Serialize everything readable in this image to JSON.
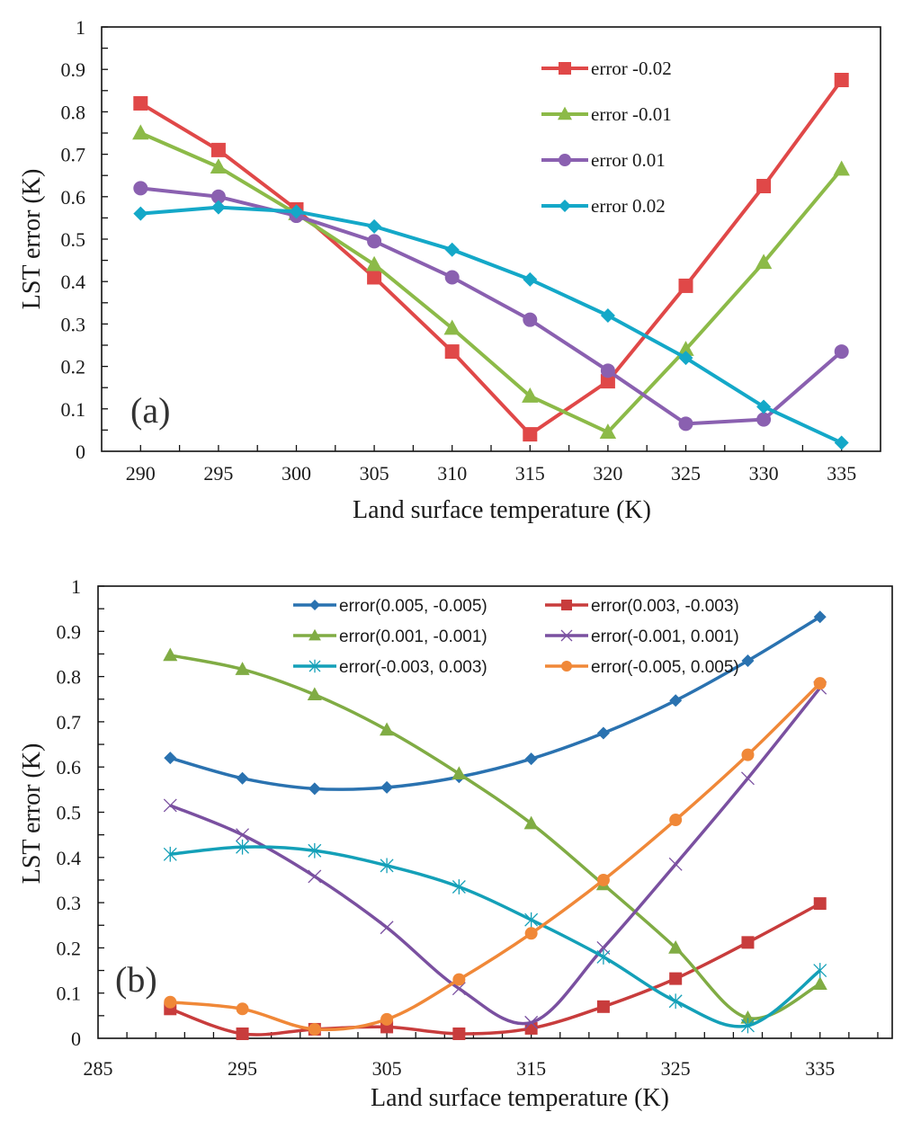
{
  "chart_data": [
    {
      "id": "a",
      "type": "line",
      "panel_label": "(a)",
      "title": "",
      "xlabel": "Land surface temperature (K)",
      "ylabel": "LST error (K)",
      "xlim": [
        287.5,
        337.5
      ],
      "ylim": [
        0,
        1
      ],
      "x_ticks": [
        290,
        295,
        300,
        305,
        310,
        315,
        320,
        325,
        330,
        335
      ],
      "x_tick_labels": [
        "290",
        "295",
        "300",
        "305",
        "310",
        "315",
        "320",
        "325",
        "330",
        "335"
      ],
      "y_ticks": [
        0,
        0.1,
        0.2,
        0.3,
        0.4,
        0.5,
        0.6,
        0.7,
        0.8,
        0.9,
        1
      ],
      "y_tick_labels": [
        "0",
        "0.1",
        "0.2",
        "0.3",
        "0.4",
        "0.5",
        "0.6",
        "0.7",
        "0.8",
        "0.9",
        "1"
      ],
      "grid": false,
      "smooth": false,
      "legend_position": "top-center",
      "x": [
        290,
        295,
        300,
        305,
        310,
        315,
        320,
        325,
        330,
        335
      ],
      "series": [
        {
          "name": "error -0.02",
          "color": "#e04848",
          "marker": "square",
          "values": [
            0.82,
            0.71,
            0.57,
            0.41,
            0.235,
            0.04,
            0.165,
            0.39,
            0.625,
            0.875
          ]
        },
        {
          "name": "error -0.01",
          "color": "#8cba48",
          "marker": "triangle",
          "values": [
            0.75,
            0.67,
            0.56,
            0.44,
            0.29,
            0.13,
            0.045,
            0.24,
            0.445,
            0.665
          ]
        },
        {
          "name": "error 0.01",
          "color": "#8a60b0",
          "marker": "circle",
          "values": [
            0.62,
            0.6,
            0.555,
            0.495,
            0.41,
            0.31,
            0.19,
            0.065,
            0.075,
            0.235
          ]
        },
        {
          "name": "error 0.02",
          "color": "#14a8c8",
          "marker": "diamond",
          "values": [
            0.56,
            0.575,
            0.565,
            0.53,
            0.475,
            0.405,
            0.32,
            0.22,
            0.105,
            0.02
          ]
        }
      ]
    },
    {
      "id": "b",
      "type": "line",
      "panel_label": "(b)",
      "title": "",
      "xlabel": "Land surface temperature (K)",
      "ylabel": "LST error (K)",
      "xlim": [
        285,
        340
      ],
      "ylim": [
        0,
        1
      ],
      "x_ticks": [
        285,
        295,
        305,
        315,
        325,
        335
      ],
      "x_tick_labels": [
        "285",
        "295",
        "305",
        "315",
        "325",
        "335"
      ],
      "x_minor_tick_step": 2,
      "y_ticks": [
        0,
        0.1,
        0.2,
        0.3,
        0.4,
        0.5,
        0.6,
        0.7,
        0.8,
        0.9,
        1
      ],
      "y_tick_labels": [
        "0",
        "0.1",
        "0.2",
        "0.3",
        "0.4",
        "0.5",
        "0.6",
        "0.7",
        "0.8",
        "0.9",
        "1"
      ],
      "grid": false,
      "smooth": true,
      "legend_position": "top-right",
      "x": [
        290,
        295,
        300,
        305,
        310,
        315,
        320,
        325,
        330,
        335
      ],
      "series": [
        {
          "name": "error(0.005, -0.005)",
          "color": "#2a72b0",
          "marker": "diamond",
          "values": [
            0.62,
            0.575,
            0.552,
            0.555,
            0.578,
            0.618,
            0.675,
            0.747,
            0.835,
            0.932
          ]
        },
        {
          "name": "error(0.003, -0.003)",
          "color": "#c83c3c",
          "marker": "square",
          "values": [
            0.065,
            0.01,
            0.02,
            0.025,
            0.01,
            0.022,
            0.07,
            0.132,
            0.212,
            0.298
          ]
        },
        {
          "name": "error(0.001, -0.001)",
          "color": "#80ac44",
          "marker": "triangle",
          "values": [
            0.847,
            0.816,
            0.76,
            0.682,
            0.585,
            0.475,
            0.34,
            0.2,
            0.045,
            0.12
          ]
        },
        {
          "name": "error(-0.001, 0.001)",
          "color": "#7a50a0",
          "marker": "x",
          "values": [
            0.515,
            0.45,
            0.358,
            0.245,
            0.11,
            0.035,
            0.2,
            0.385,
            0.575,
            0.775
          ]
        },
        {
          "name": "error(-0.003, 0.003)",
          "color": "#14a0b8",
          "marker": "star",
          "values": [
            0.407,
            0.423,
            0.415,
            0.382,
            0.335,
            0.262,
            0.18,
            0.082,
            0.028,
            0.15
          ]
        },
        {
          "name": "error(-0.005, 0.005)",
          "color": "#f08838",
          "marker": "circle",
          "values": [
            0.08,
            0.065,
            0.02,
            0.042,
            0.13,
            0.232,
            0.35,
            0.483,
            0.627,
            0.785
          ]
        }
      ]
    }
  ]
}
